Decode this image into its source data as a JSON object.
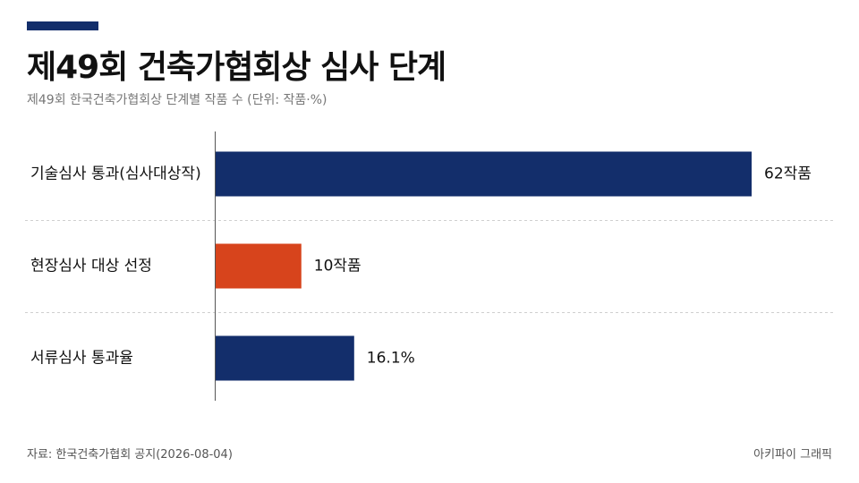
{
  "header": {
    "title": "제49회 건축가협회상 심사 단계",
    "subtitle": "제49회 한국건축가협회상 단계별 작품 수 (단위: 작품·%)"
  },
  "footer": {
    "source": "자료: 한국건축가협회 공지(2026-08-04)",
    "credit": "아키파이 그래픽"
  },
  "colors": {
    "accent": "#132e6b",
    "navy": "#132e6b",
    "highlight": "#d7441c"
  },
  "chart_data": {
    "type": "bar",
    "orientation": "horizontal",
    "categories": [
      "기술심사 통과(심사대상작)",
      "현장심사 대상 선정",
      "서류심사 통과율"
    ],
    "values": [
      62,
      10,
      16.1
    ],
    "value_labels": [
      "62작품",
      "10작품",
      "16.1%"
    ],
    "bar_colors": [
      "#132e6b",
      "#d7441c",
      "#132e6b"
    ],
    "xlim": [
      0,
      62
    ]
  }
}
